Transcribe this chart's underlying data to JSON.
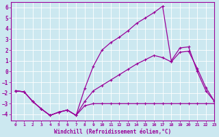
{
  "xlabel": "Windchill (Refroidissement éolien,°C)",
  "bg_color": "#cce8f0",
  "line_color": "#990099",
  "xlim": [
    -0.5,
    23
  ],
  "ylim": [
    -4.6,
    6.5
  ],
  "yticks": [
    -4,
    -3,
    -2,
    -1,
    0,
    1,
    2,
    3,
    4,
    5,
    6
  ],
  "xticks": [
    0,
    1,
    2,
    3,
    4,
    5,
    6,
    7,
    8,
    9,
    10,
    11,
    12,
    13,
    14,
    15,
    16,
    17,
    18,
    19,
    20,
    21,
    22,
    23
  ],
  "line1_x": [
    0,
    1,
    2,
    3,
    4,
    5,
    6,
    7,
    8,
    9,
    10,
    11,
    12,
    13,
    14,
    15,
    16,
    17,
    18,
    19,
    20,
    21,
    22,
    23
  ],
  "line1_y": [
    -1.8,
    -1.9,
    -2.8,
    -3.5,
    -4.1,
    -3.8,
    -3.6,
    -4.1,
    -1.6,
    0.5,
    2.0,
    2.7,
    3.2,
    3.8,
    4.5,
    5.0,
    5.5,
    6.1,
    1.0,
    2.2,
    2.3,
    0.0,
    -1.8,
    -2.8
  ],
  "line2_x": [
    0,
    1,
    2,
    3,
    4,
    5,
    6,
    7,
    8,
    9,
    10,
    11,
    12,
    13,
    14,
    15,
    16,
    17,
    18,
    19,
    20,
    21,
    22,
    23
  ],
  "line2_y": [
    -1.8,
    -1.9,
    -2.8,
    -3.5,
    -4.1,
    -3.8,
    -3.6,
    -4.1,
    -3.2,
    -3.0,
    -3.0,
    -3.0,
    -3.0,
    -3.0,
    -3.0,
    -3.0,
    -3.0,
    -3.0,
    -3.0,
    -3.0,
    -3.0,
    -3.0,
    -3.0,
    -3.0
  ],
  "line3_x": [
    0,
    1,
    2,
    3,
    4,
    5,
    6,
    7,
    8,
    9,
    10,
    11,
    12,
    13,
    14,
    15,
    16,
    17,
    18,
    19,
    20,
    21,
    22,
    23
  ],
  "line3_y": [
    -1.8,
    -1.9,
    -2.8,
    -3.5,
    -4.1,
    -3.8,
    -3.6,
    -4.1,
    -2.8,
    -1.8,
    -1.3,
    -0.8,
    -0.3,
    0.2,
    0.7,
    1.1,
    1.5,
    1.3,
    0.9,
    1.8,
    1.9,
    0.3,
    -1.5,
    -2.8
  ]
}
